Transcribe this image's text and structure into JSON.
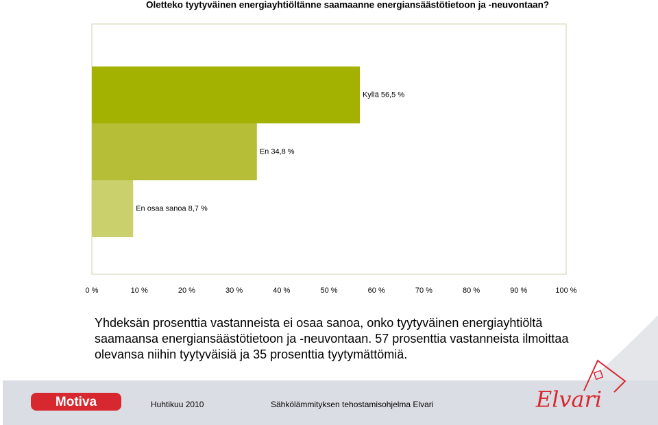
{
  "chart_data": {
    "type": "hbar",
    "title": "Oletteko tyytyväinen energiayhtiöltänne saamaanne energiansäästötietoon ja -neuvontaan?",
    "values": [
      56.5,
      34.8,
      8.7
    ],
    "value_labels": [
      "Kyllä 56,5 %",
      "En 34,8 %",
      "En osaa sanoa 8,7 %"
    ],
    "colors": [
      "#a3b100",
      "#b6be38",
      "#cad16c"
    ],
    "xlim": [
      0,
      100
    ],
    "xticks": [
      {
        "value": 0,
        "label": "0 %"
      },
      {
        "value": 10,
        "label": "10 %"
      },
      {
        "value": 20,
        "label": "20 %"
      },
      {
        "value": 30,
        "label": "30 %"
      },
      {
        "value": 40,
        "label": "40 %"
      },
      {
        "value": 50,
        "label": "50 %"
      },
      {
        "value": 60,
        "label": "60 %"
      },
      {
        "value": 70,
        "label": "70 %"
      },
      {
        "value": 80,
        "label": "80 %"
      },
      {
        "value": 90,
        "label": "90 %"
      },
      {
        "value": 100,
        "label": "100 %"
      }
    ],
    "grid": false
  },
  "summary": [
    "Yhdeksän prosenttia vastanneista ei osaa sanoa, onko tyytyväinen energiayhtiöltä",
    "saamaansa energiansäästötietoon ja -neuvontaan. 57 prosenttia vastanneista ilmoittaa",
    "olevansa niihin tyytyväisiä ja 35 prosenttia tyytymättömiä."
  ],
  "footer": {
    "logo_left": "Motiva",
    "date": "Huhtikuu 2010",
    "program": "Sähkölämmityksen tehostamisohjelma Elvari",
    "logo_right": "Elvari"
  }
}
